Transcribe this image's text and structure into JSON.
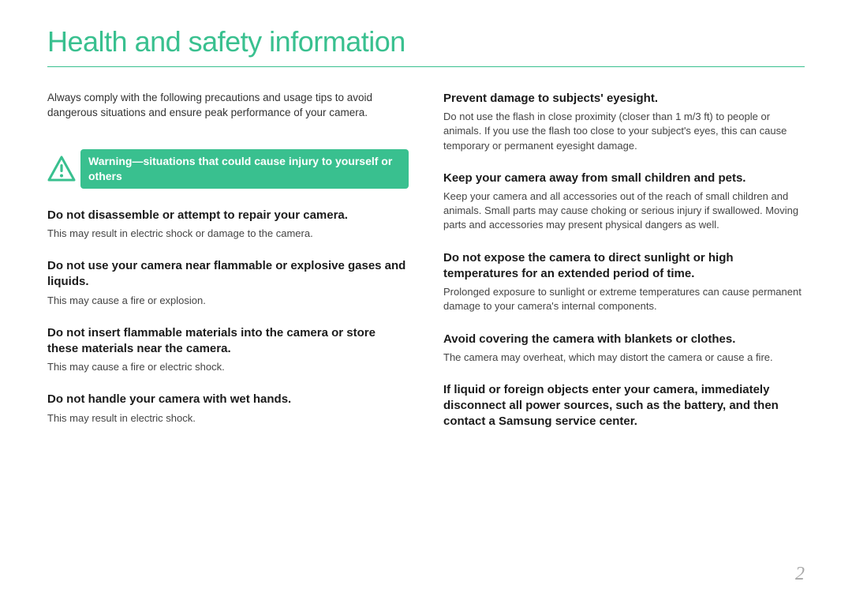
{
  "title": "Health and safety information",
  "title_color": "#39c08f",
  "intro": "Always comply with the following precautions and usage tips to avoid dangerous situations and ensure peak performance of your camera.",
  "warning_label": "Warning—situations that could cause injury to yourself or others",
  "warning_bg": "#39c08f",
  "warning_text_color": "#ffffff",
  "left_sections": [
    {
      "heading": "Do not disassemble or attempt to repair your camera.",
      "body": "This may result in electric shock or damage to the camera."
    },
    {
      "heading": "Do not use your camera near flammable or explosive gases and liquids.",
      "body": "This may cause a fire or explosion."
    },
    {
      "heading": "Do not insert flammable materials into the camera or store these materials near the camera.",
      "body": "This may cause a fire or electric shock."
    },
    {
      "heading": "Do not handle your camera with wet hands.",
      "body": "This may result in electric shock."
    }
  ],
  "right_sections": [
    {
      "heading": "Prevent damage to subjects' eyesight.",
      "body": "Do not use the flash in close proximity (closer than 1 m/3 ft) to people or animals. If you use the flash too close to your subject's eyes, this can cause temporary or permanent eyesight damage."
    },
    {
      "heading": "Keep your camera away from small children and pets.",
      "body": "Keep your camera and all accessories out of the reach of small children and animals. Small parts may cause choking or serious injury if swallowed. Moving parts and accessories may present physical dangers as well."
    },
    {
      "heading": "Do not expose the camera to direct sunlight or high temperatures for an extended period of time.",
      "body": "Prolonged exposure to sunlight or extreme temperatures can cause permanent damage to your camera's internal components."
    },
    {
      "heading": "Avoid covering the camera with blankets or clothes.",
      "body": "The camera may overheat, which may distort the camera or cause a fire."
    },
    {
      "heading": "If liquid or foreign objects enter your camera, immediately disconnect all power sources, such as the battery, and then contact a Samsung service center.",
      "body": ""
    }
  ],
  "page_number": "2",
  "body_text_color": "#444444",
  "heading_text_color": "#1b1b1b",
  "page_number_color": "#a8a8a8",
  "background_color": "#ffffff"
}
